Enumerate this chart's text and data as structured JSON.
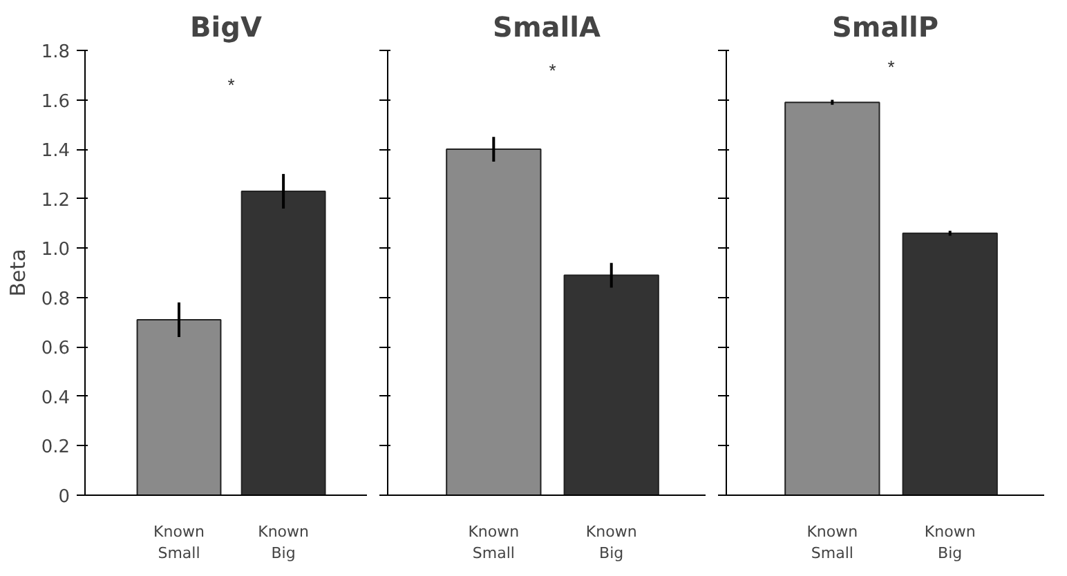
{
  "chart_data": [
    {
      "type": "bar",
      "title": "BigV",
      "ylabel": "Beta",
      "categories": [
        "Known\nSmall",
        "Known\nBig"
      ],
      "values": [
        0.71,
        1.23
      ],
      "errors": [
        0.07,
        0.07
      ],
      "colors": [
        "#8a8a8a",
        "#333333"
      ],
      "ylim": [
        0,
        1.8
      ],
      "yticks": [
        0,
        0.2,
        0.4,
        0.6,
        0.8,
        {
          "value": 1,
          "label": "1.0"
        },
        1.2,
        1.4,
        1.6,
        1.8
      ],
      "annotations": [
        "*"
      ],
      "grid": false
    },
    {
      "type": "bar",
      "title": "SmallA",
      "categories": [
        "Known\nSmall",
        "Known\nBig"
      ],
      "values": [
        1.4,
        0.89
      ],
      "errors": [
        0.05,
        0.05
      ],
      "colors": [
        "#8a8a8a",
        "#333333"
      ],
      "ylim": [
        0,
        1.8
      ],
      "yticks": [
        0,
        0.2,
        0.4,
        0.6,
        0.8,
        1,
        1.2,
        1.4,
        1.6,
        1.8
      ],
      "tick_labels": "x",
      "annotations": [
        "*"
      ],
      "grid": false
    },
    {
      "type": "bar",
      "title": "SmallP",
      "categories": [
        "Known\nSmall",
        "Known\nBig"
      ],
      "values": [
        1.59,
        1.06
      ],
      "errors": [
        0.01,
        0.01
      ],
      "colors": [
        "#8a8a8a",
        "#333333"
      ],
      "ylim": [
        0,
        1.8
      ],
      "yticks": [
        0,
        0.2,
        0.4,
        0.6,
        0.8,
        1,
        1.2,
        1.4,
        1.6,
        1.8
      ],
      "tick_labels": "x",
      "annotations": [
        "*"
      ],
      "grid": false
    }
  ]
}
